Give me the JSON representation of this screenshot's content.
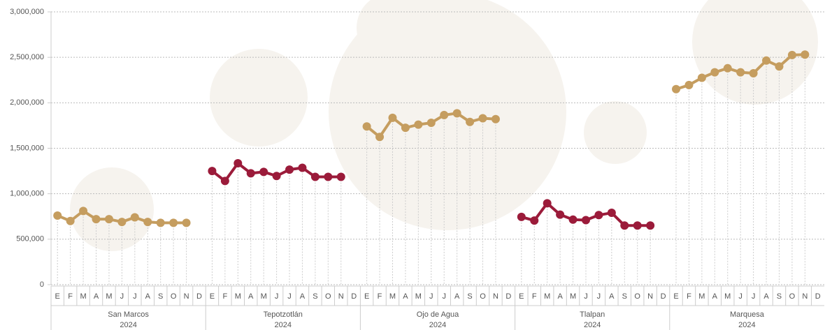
{
  "chart_data": {
    "type": "line",
    "categories": [
      "E",
      "F",
      "M",
      "A",
      "M",
      "J",
      "J",
      "A",
      "S",
      "O",
      "N",
      "D"
    ],
    "series": [
      {
        "name": "San Marcos",
        "year": "2024",
        "color": "#c59d5f",
        "values": [
          760000,
          700000,
          810000,
          720000,
          720000,
          690000,
          740000,
          690000,
          680000,
          680000,
          680000,
          null
        ]
      },
      {
        "name": "Tepotzotlán",
        "year": "2024",
        "color": "#9b1b3a",
        "values": [
          1250000,
          1140000,
          1335000,
          1225000,
          1240000,
          1195000,
          1265000,
          1285000,
          1185000,
          1185000,
          1185000,
          null
        ]
      },
      {
        "name": "Ojo de Agua",
        "year": "2024",
        "color": "#c59d5f",
        "values": [
          1740000,
          1625000,
          1835000,
          1725000,
          1760000,
          1780000,
          1865000,
          1885000,
          1790000,
          1830000,
          1820000,
          null
        ]
      },
      {
        "name": "Tlalpan",
        "year": "2024",
        "color": "#9b1b3a",
        "values": [
          745000,
          705000,
          895000,
          770000,
          715000,
          710000,
          765000,
          790000,
          650000,
          650000,
          650000,
          null
        ]
      },
      {
        "name": "Marquesa",
        "year": "2024",
        "color": "#c59d5f",
        "values": [
          2150000,
          2195000,
          2275000,
          2335000,
          2380000,
          2335000,
          2325000,
          2465000,
          2400000,
          2525000,
          2530000,
          null
        ]
      }
    ],
    "ylim": [
      0,
      3000000
    ],
    "yticks": [
      0,
      {
        "value": 500000,
        "label": "500,000"
      },
      {
        "value": 1000000,
        "label": "1,000,000"
      },
      {
        "value": 1500000,
        "label": "1,500,000"
      },
      {
        "value": 2000000,
        "label": "2,000,000"
      },
      {
        "value": 2500000,
        "label": "2,500,000"
      },
      {
        "value": 3000000,
        "label": "3,000,000"
      }
    ],
    "grid": true
  }
}
